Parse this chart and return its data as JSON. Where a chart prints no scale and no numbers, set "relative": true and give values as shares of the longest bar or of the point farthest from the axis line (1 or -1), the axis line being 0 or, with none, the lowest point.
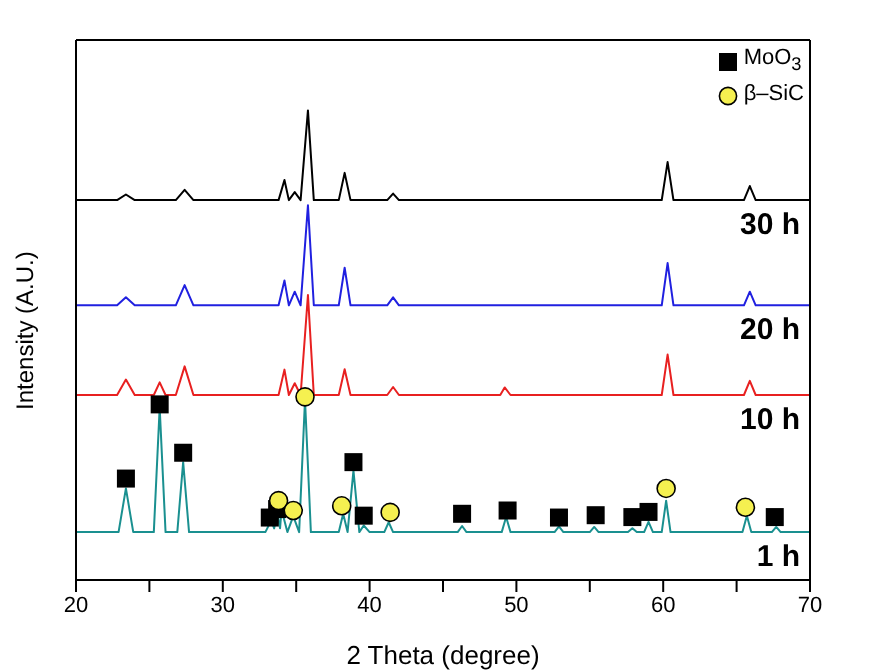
{
  "chart_data": {
    "type": "line",
    "relative": true,
    "xlabel": "2 Theta (degree)",
    "ylabel": "Intensity (A.U.)",
    "xlim": [
      20,
      70
    ],
    "xticks": [
      20,
      {
        "value": 25,
        "label": null
      },
      30,
      {
        "value": 35,
        "label": null
      },
      40,
      {
        "value": 45,
        "label": null
      },
      50,
      {
        "value": 55,
        "label": null
      },
      60,
      {
        "value": 65,
        "label": null
      },
      70
    ],
    "legend": "top right",
    "grid": false,
    "series": [
      {
        "name": "30 h",
        "marker": "none",
        "color": "#000000",
        "x": [
          20,
          22.8,
          23.4,
          24,
          26.8,
          27.4,
          28,
          33.8,
          34.2,
          34.5,
          34.9,
          35.3,
          35.8,
          36.2,
          37.9,
          38.3,
          38.7,
          41.2,
          41.6,
          42,
          59.9,
          60.3,
          60.7,
          65.5,
          65.9,
          66.3,
          70
        ],
        "values": [
          0.809,
          0.809,
          0.821,
          0.809,
          0.809,
          0.831,
          0.809,
          0.809,
          0.852,
          0.809,
          0.826,
          0.809,
          1.0,
          0.809,
          0.809,
          0.867,
          0.809,
          0.809,
          0.823,
          0.809,
          0.809,
          0.89,
          0.809,
          0.809,
          0.839,
          0.809,
          0.809
        ]
      },
      {
        "name": "20 h",
        "marker": "none",
        "color": "#2020e0",
        "x": [
          20,
          22.8,
          23.4,
          24,
          26.8,
          27.4,
          28,
          33.8,
          34.2,
          34.5,
          34.9,
          35.3,
          35.8,
          36.2,
          37.9,
          38.3,
          38.7,
          41.2,
          41.6,
          42,
          59.9,
          60.3,
          60.7,
          65.5,
          65.9,
          66.3,
          70
        ],
        "values": [
          0.585,
          0.585,
          0.602,
          0.585,
          0.585,
          0.628,
          0.585,
          0.585,
          0.638,
          0.585,
          0.614,
          0.585,
          0.798,
          0.585,
          0.585,
          0.665,
          0.585,
          0.585,
          0.602,
          0.585,
          0.585,
          0.675,
          0.585,
          0.585,
          0.614,
          0.585,
          0.585
        ]
      },
      {
        "name": "10 h",
        "marker": "none",
        "color": "#e82020",
        "x": [
          20,
          22.8,
          23.4,
          24,
          25.3,
          25.7,
          26.1,
          26.8,
          27.4,
          28,
          33.8,
          34.2,
          34.5,
          34.9,
          35.3,
          35.8,
          36.2,
          37.9,
          38.3,
          38.7,
          41.2,
          41.6,
          42,
          48.9,
          49.2,
          49.6,
          59.9,
          60.3,
          60.7,
          65.5,
          65.9,
          66.3,
          70
        ],
        "values": [
          0.394,
          0.394,
          0.427,
          0.394,
          0.394,
          0.421,
          0.394,
          0.394,
          0.455,
          0.394,
          0.394,
          0.448,
          0.394,
          0.419,
          0.394,
          0.607,
          0.394,
          0.394,
          0.449,
          0.394,
          0.394,
          0.411,
          0.394,
          0.394,
          0.41,
          0.394,
          0.394,
          0.48,
          0.394,
          0.394,
          0.424,
          0.394,
          0.394
        ]
      },
      {
        "name": "1 h",
        "marker": "none",
        "color": "#1a9090",
        "x": [
          20,
          22.9,
          23.4,
          23.9,
          25.3,
          25.7,
          26.1,
          26.9,
          27.3,
          27.7,
          32.9,
          33.3,
          33.5,
          33.7,
          33.9,
          34.0,
          34.4,
          34.8,
          35.2,
          35.6,
          36.0,
          37.9,
          38.2,
          38.5,
          38.9,
          39.3,
          39.6,
          40.0,
          41.0,
          41.3,
          41.6,
          46.0,
          46.3,
          46.6,
          49.0,
          49.3,
          49.6,
          52.6,
          52.9,
          53.2,
          55.0,
          55.3,
          55.6,
          57.6,
          57.9,
          58.2,
          58.7,
          59.0,
          59.3,
          59.9,
          60.2,
          60.5,
          65.4,
          65.7,
          66.0,
          67.4,
          67.7,
          68.0,
          70
        ],
        "values": [
          0.102,
          0.102,
          0.195,
          0.102,
          0.102,
          0.367,
          0.102,
          0.102,
          0.251,
          0.102,
          0.102,
          0.127,
          0.11,
          0.144,
          0.11,
          0.15,
          0.102,
          0.136,
          0.102,
          0.384,
          0.102,
          0.102,
          0.141,
          0.102,
          0.233,
          0.102,
          0.116,
          0.102,
          0.102,
          0.123,
          0.102,
          0.102,
          0.115,
          0.102,
          0.102,
          0.134,
          0.102,
          0.102,
          0.114,
          0.102,
          0.102,
          0.113,
          0.102,
          0.102,
          0.11,
          0.102,
          0.102,
          0.124,
          0.102,
          0.102,
          0.169,
          0.102,
          0.102,
          0.137,
          0.102,
          0.102,
          0.113,
          0.102,
          0.102
        ]
      },
      {
        "name": "MoO$_{3}$",
        "type": "scatter",
        "marker": "square",
        "color": "#000000",
        "x": [
          23.4,
          25.7,
          27.3,
          33.2,
          33.7,
          38.9,
          39.6,
          46.3,
          49.4,
          52.9,
          55.4,
          57.9,
          59.0,
          67.6
        ],
        "values": [
          0.216,
          0.374,
          0.271,
          0.133,
          0.151,
          0.251,
          0.137,
          0.141,
          0.148,
          0.133,
          0.138,
          0.134,
          0.145,
          0.134
        ]
      },
      {
        "name": "β–SiC",
        "type": "scatter",
        "marker": "circle",
        "color": "#f5f050",
        "x": [
          33.8,
          34.8,
          35.6,
          38.1,
          41.4,
          60.2,
          65.6
        ],
        "values": [
          0.169,
          0.148,
          0.39,
          0.158,
          0.144,
          0.195,
          0.155
        ]
      }
    ]
  }
}
